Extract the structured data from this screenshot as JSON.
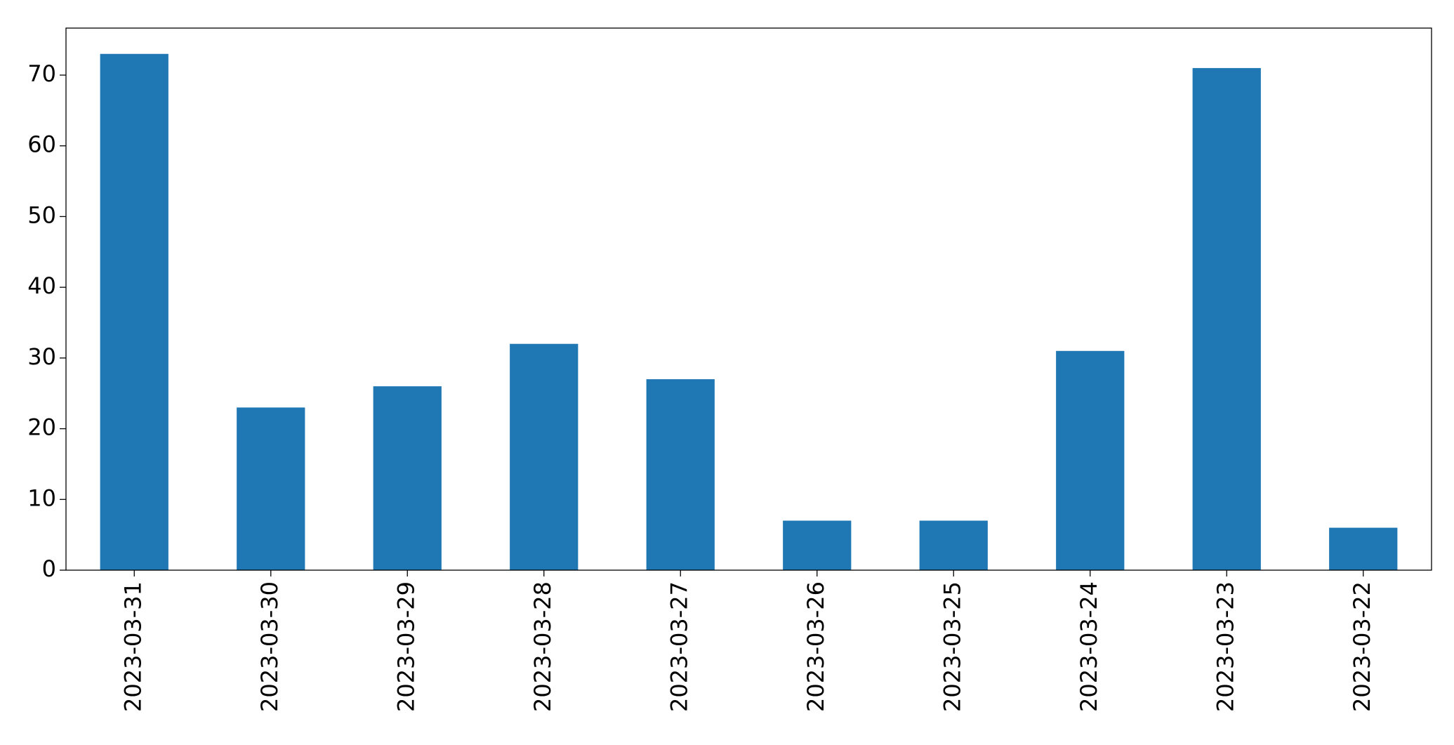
{
  "chart_data": {
    "type": "bar",
    "categories": [
      "2023-03-31",
      "2023-03-30",
      "2023-03-29",
      "2023-03-28",
      "2023-03-27",
      "2023-03-26",
      "2023-03-25",
      "2023-03-24",
      "2023-03-23",
      "2023-03-22"
    ],
    "values": [
      73,
      23,
      26,
      32,
      27,
      7,
      7,
      31,
      71,
      6
    ],
    "color": "#1f77b4",
    "ylim": [
      0,
      76.65
    ],
    "yticks": [
      0,
      10,
      20,
      30,
      40,
      50,
      60,
      70
    ],
    "grid": false
  }
}
